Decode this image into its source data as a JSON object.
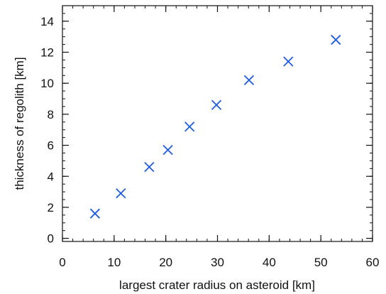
{
  "chart_data": {
    "type": "scatter",
    "xlabel": "largest crater radius on asteroid [km]",
    "ylabel": "thickness of regolith [km]",
    "xlim": [
      0,
      60
    ],
    "ylim": [
      -0.2,
      15
    ],
    "xticks": [
      0,
      10,
      20,
      30,
      40,
      50,
      60
    ],
    "yticks": [
      0,
      2,
      4,
      6,
      8,
      10,
      12,
      14
    ],
    "x_minor_step": 2,
    "y_minor_step": 0.5,
    "grid": false,
    "marker": "x",
    "marker_color": "#1f5ce0",
    "axis_color": "#111111",
    "points": [
      {
        "x": 6.3,
        "y": 1.6
      },
      {
        "x": 11.3,
        "y": 2.9
      },
      {
        "x": 16.8,
        "y": 4.6
      },
      {
        "x": 20.4,
        "y": 5.7
      },
      {
        "x": 24.6,
        "y": 7.2
      },
      {
        "x": 29.8,
        "y": 8.6
      },
      {
        "x": 36.1,
        "y": 10.2
      },
      {
        "x": 43.7,
        "y": 11.4
      },
      {
        "x": 52.9,
        "y": 12.8
      }
    ]
  }
}
